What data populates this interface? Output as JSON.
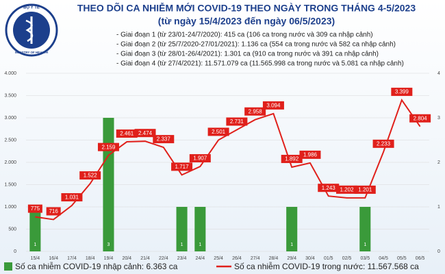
{
  "logo": {
    "top": "BỘ Y TẾ",
    "bottom": "MINISTRY OF HEALTH"
  },
  "chart_data": {
    "type": "combo",
    "title": "THEO DÕI CA NHIỄM MỚI COVID-19 THEO NGÀY TRONG THÁNG 4-5/2023",
    "subtitle": "(từ ngày 15/4/2023 đến ngày 06/5/2023)",
    "notes": [
      "- Giai đoạn 1 (từ 23/01-24/7/2020): 415 ca (106 ca trong nước và 309 ca nhập cảnh)",
      "- Giai đoạn 2 (từ 25/7/2020-27/01/2021): 1.136 ca (554 ca trong nước và 582 ca nhập cảnh)",
      "- Giai đoạn 3 (từ 28/01-26/4/2021): 1.301 ca (910 ca trong nước và 391 ca nhập cảnh)",
      "- Giai đoạn 4 (từ 27/4/2021): 11.571.079 ca (11.565.998 ca trong nước và 5.081 ca nhập cảnh)"
    ],
    "categories": [
      "15/4",
      "16/4",
      "17/4",
      "18/4",
      "19/4",
      "20/4",
      "21/4",
      "22/4",
      "23/4",
      "24/4",
      "25/4",
      "26/4",
      "27/4",
      "28/4",
      "29/4",
      "30/4",
      "01/5",
      "02/5",
      "03/5",
      "04/5",
      "05/5",
      "06/5"
    ],
    "series": [
      {
        "name": "Số ca nhiễm COVID-19 nhập cảnh: 6.363 ca",
        "type": "bar",
        "axis": "y2",
        "color": "#3a9a3a",
        "values": [
          1,
          0,
          0,
          0,
          3,
          0,
          0,
          0,
          1,
          1,
          0,
          0,
          0,
          0,
          1,
          0,
          0,
          0,
          1,
          0,
          0,
          0
        ]
      },
      {
        "name": "Số ca nhiễm COVID-19 trong nước: 11.567.568 ca",
        "type": "line",
        "axis": "y",
        "color": "#e0201b",
        "values": [
          775,
          716,
          1031,
          1522,
          2159,
          2461,
          2474,
          2337,
          1717,
          1907,
          2501,
          2731,
          2958,
          3094,
          1892,
          1986,
          1243,
          1202,
          1201,
          2233,
          3399,
          2804
        ],
        "value_labels": [
          "775",
          "716",
          "1.031",
          "1.522",
          "2.159",
          "2.461",
          "2.474",
          "2.337",
          "1.717",
          "1.907",
          "2.501",
          "2.731",
          "2.958",
          "3.094",
          "1.892",
          "1.986",
          "1.243",
          "1.202",
          "1.201",
          "2.233",
          "3.399",
          "2.804"
        ]
      }
    ],
    "ylim": [
      0,
      4000
    ],
    "yticks": [
      {
        "value": 0,
        "label": "0"
      },
      {
        "value": 500,
        "label": "500"
      },
      {
        "value": 1000,
        "label": "1.000"
      },
      {
        "value": 1500,
        "label": "1.500"
      },
      {
        "value": 2000,
        "label": "2.000"
      },
      {
        "value": 2500,
        "label": "2.500"
      },
      {
        "value": 3000,
        "label": "3.000"
      },
      {
        "value": 3500,
        "label": "3.500"
      },
      {
        "value": 4000,
        "label": "4.000"
      }
    ],
    "y2lim": [
      0,
      4
    ],
    "y2ticks": [
      0,
      1,
      2,
      3,
      4
    ],
    "grid": true
  }
}
